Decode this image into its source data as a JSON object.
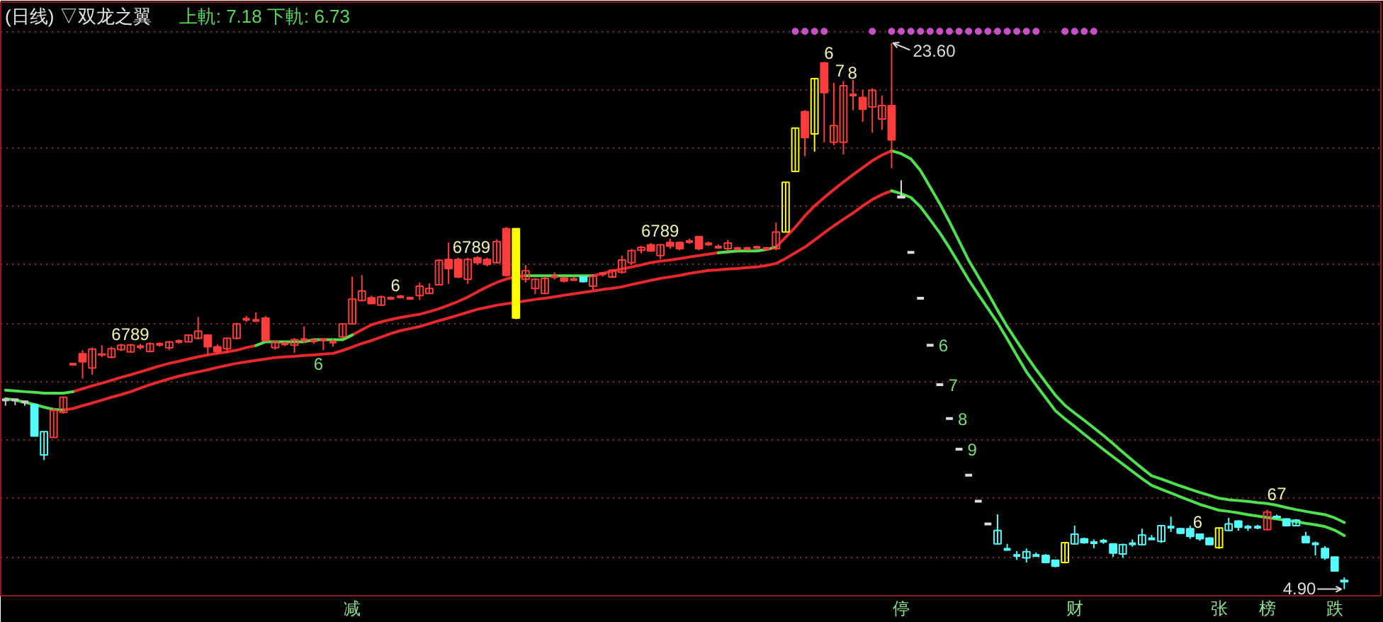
{
  "chart_data": {
    "type": "candlestick",
    "title": "(日线) ▽双龙之翼",
    "subtitle": "上軌: 7.18 下軌: 6.73",
    "categories": [
      null,
      null,
      null,
      null,
      null,
      null,
      null,
      null,
      null,
      null,
      null,
      null,
      null,
      null,
      null,
      null,
      null,
      null,
      null,
      null,
      null,
      null,
      null,
      null,
      null,
      null,
      null,
      null,
      null,
      null,
      null,
      null,
      null,
      null,
      null,
      null,
      "减",
      null,
      null,
      null,
      null,
      null,
      null,
      null,
      null,
      null,
      null,
      null,
      null,
      null,
      null,
      null,
      null,
      null,
      null,
      null,
      null,
      null,
      null,
      null,
      null,
      null,
      null,
      null,
      null,
      null,
      null,
      null,
      null,
      null,
      null,
      null,
      null,
      null,
      null,
      null,
      null,
      null,
      null,
      null,
      null,
      null,
      null,
      null,
      null,
      null,
      null,
      null,
      null,
      null,
      null,
      null,
      null,
      "停",
      null,
      null,
      null,
      null,
      null,
      null,
      null,
      null,
      null,
      null,
      null,
      null,
      null,
      null,
      null,
      null,
      null,
      "财",
      null,
      null,
      null,
      null,
      null,
      null,
      null,
      null,
      null,
      null,
      null,
      null,
      null,
      null,
      "张",
      null,
      null,
      null,
      null,
      "榜",
      null,
      null,
      null,
      null,
      null,
      null,
      "跌",
      null
    ],
    "ohlc": [
      [
        11.38,
        11.42,
        11.18,
        11.38
      ],
      [
        11.38,
        11.42,
        11.2,
        11.38
      ],
      [
        11.31,
        11.35,
        11.18,
        11.31
      ],
      [
        11.22,
        11.22,
        10.14,
        10.14
      ],
      [
        9.49,
        10.29,
        9.32,
        10.29
      ],
      [
        10.09,
        11.11,
        10.09,
        11.02
      ],
      [
        10.95,
        11.5,
        10.9,
        11.47
      ],
      [
        12.6,
        12.65,
        12.55,
        12.6
      ],
      [
        12.96,
        13.08,
        12.11,
        12.68
      ],
      [
        12.47,
        13.17,
        12.24,
        13.12
      ],
      [
        12.95,
        13.25,
        12.84,
        12.92
      ],
      [
        12.84,
        13.2,
        12.8,
        13.13
      ],
      [
        13.1,
        13.3,
        13.05,
        13.25
      ],
      [
        13.02,
        13.3,
        13.0,
        13.26
      ],
      [
        13.2,
        13.3,
        13.1,
        13.2
      ],
      [
        13.04,
        13.35,
        13.0,
        13.3
      ],
      [
        13.28,
        13.35,
        13.2,
        13.28
      ],
      [
        13.16,
        13.4,
        13.08,
        13.36
      ],
      [
        13.38,
        13.45,
        13.3,
        13.38
      ],
      [
        13.37,
        13.62,
        13.35,
        13.6
      ],
      [
        13.49,
        14.22,
        13.45,
        13.73
      ],
      [
        13.6,
        13.62,
        12.92,
        13.2
      ],
      [
        13.2,
        13.28,
        12.95,
        13.03
      ],
      [
        13.13,
        13.52,
        12.99,
        13.49
      ],
      [
        13.49,
        14.02,
        13.45,
        13.98
      ],
      [
        14.14,
        14.25,
        14.05,
        14.14
      ],
      [
        14.1,
        14.38,
        14.05,
        14.1
      ],
      [
        14.18,
        14.25,
        13.41,
        13.41
      ],
      [
        13.17,
        13.4,
        13.1,
        13.37
      ],
      [
        13.3,
        13.38,
        13.22,
        13.3
      ],
      [
        13.25,
        13.5,
        12.99,
        13.44
      ],
      [
        13.44,
        13.89,
        13.33,
        13.44
      ],
      [
        13.4,
        13.48,
        13.3,
        13.4
      ],
      [
        13.44,
        13.47,
        13.08,
        13.44
      ],
      [
        13.36,
        13.45,
        13.2,
        13.36
      ],
      [
        13.54,
        14.0,
        13.5,
        13.98
      ],
      [
        13.98,
        15.6,
        13.98,
        14.83
      ],
      [
        14.78,
        15.65,
        14.75,
        15.11
      ],
      [
        14.88,
        14.95,
        14.65,
        14.68
      ],
      [
        14.62,
        14.95,
        14.6,
        14.9
      ],
      [
        14.86,
        14.92,
        14.8,
        14.86
      ],
      [
        14.91,
        14.97,
        14.85,
        14.91
      ],
      [
        14.86,
        14.92,
        14.8,
        14.86
      ],
      [
        14.95,
        15.4,
        14.8,
        15.27
      ],
      [
        15.02,
        15.37,
        15.0,
        15.19
      ],
      [
        15.32,
        16.2,
        15.3,
        16.16
      ],
      [
        16.19,
        16.77,
        15.35,
        15.87
      ],
      [
        16.19,
        16.25,
        15.55,
        15.59
      ],
      [
        15.51,
        16.25,
        15.35,
        16.19
      ],
      [
        16.24,
        16.3,
        16.0,
        16.08
      ],
      [
        16.19,
        16.25,
        15.95,
        16.02
      ],
      [
        16.08,
        16.88,
        16.05,
        16.8
      ],
      [
        17.24,
        17.3,
        15.6,
        15.64
      ],
      [
        17.24,
        17.24,
        14.14,
        14.18
      ],
      [
        15.51,
        16.0,
        15.4,
        15.8
      ],
      [
        15.19,
        15.55,
        15.0,
        15.51
      ],
      [
        15.02,
        15.6,
        15.0,
        15.54
      ],
      [
        15.6,
        15.75,
        15.5,
        15.6
      ],
      [
        15.55,
        15.6,
        15.4,
        15.45
      ],
      [
        15.5,
        15.6,
        15.45,
        15.5
      ],
      [
        15.59,
        15.6,
        15.4,
        15.43
      ],
      [
        15.27,
        15.65,
        15.15,
        15.62
      ],
      [
        15.7,
        15.75,
        15.6,
        15.7
      ],
      [
        15.59,
        15.85,
        15.55,
        15.82
      ],
      [
        15.75,
        16.32,
        15.7,
        16.17
      ],
      [
        16.08,
        16.55,
        16.0,
        16.49
      ],
      [
        16.5,
        16.65,
        16.4,
        16.6
      ],
      [
        16.69,
        16.75,
        16.45,
        16.48
      ],
      [
        16.32,
        16.72,
        16.2,
        16.69
      ],
      [
        16.77,
        16.9,
        16.55,
        16.64
      ],
      [
        16.77,
        16.8,
        16.5,
        16.56
      ],
      [
        16.8,
        16.9,
        16.72,
        16.8
      ],
      [
        16.97,
        17.0,
        16.5,
        16.56
      ],
      [
        16.72,
        16.8,
        16.65,
        16.72
      ],
      [
        16.61,
        16.7,
        16.55,
        16.61
      ],
      [
        16.56,
        16.85,
        16.5,
        16.75
      ],
      [
        16.56,
        16.62,
        16.5,
        16.56
      ],
      [
        16.56,
        16.62,
        16.5,
        16.56
      ],
      [
        16.6,
        16.66,
        16.54,
        16.6
      ],
      [
        16.56,
        16.62,
        16.5,
        16.56
      ],
      [
        16.56,
        17.45,
        16.5,
        17.13
      ],
      [
        17.13,
        18.83,
        17.13,
        18.83
      ],
      [
        19.2,
        20.69,
        19.2,
        20.69
      ],
      [
        21.25,
        21.3,
        19.72,
        20.36
      ],
      [
        20.49,
        22.4,
        19.88,
        22.38
      ],
      [
        22.92,
        22.95,
        20.2,
        21.9
      ],
      [
        20.2,
        22.24,
        20.1,
        20.77
      ],
      [
        20.2,
        22.3,
        19.78,
        22.14
      ],
      [
        21.82,
        22.33,
        21.3,
        21.82
      ],
      [
        21.74,
        21.99,
        20.9,
        21.33
      ],
      [
        21.41,
        22.05,
        20.53,
        21.98
      ],
      [
        21.0,
        21.8,
        20.63,
        21.46
      ],
      [
        21.46,
        23.6,
        19.31,
        20.28
      ],
      [
        18.35,
        18.9,
        18.3,
        18.3
      ],
      [
        16.43,
        16.43,
        16.43,
        16.43
      ],
      [
        14.86,
        14.86,
        14.86,
        14.86
      ],
      [
        13.25,
        13.25,
        13.25,
        13.25
      ],
      [
        11.9,
        11.9,
        11.9,
        11.9
      ],
      [
        10.74,
        10.74,
        10.74,
        10.74
      ],
      [
        9.69,
        9.69,
        9.69,
        9.69
      ],
      [
        8.8,
        8.8,
        8.8,
        8.8
      ],
      [
        7.91,
        7.91,
        7.91,
        7.91
      ],
      [
        7.13,
        7.13,
        7.13,
        7.13
      ],
      [
        6.45,
        7.46,
        6.45,
        6.91
      ],
      [
        6.26,
        6.45,
        6.22,
        6.26
      ],
      [
        6.05,
        6.2,
        5.9,
        6.05
      ],
      [
        5.97,
        6.29,
        5.81,
        6.18
      ],
      [
        6.05,
        6.15,
        6.0,
        6.05
      ],
      [
        6.05,
        6.1,
        5.78,
        5.81
      ],
      [
        5.89,
        5.9,
        5.65,
        5.68
      ],
      [
        5.81,
        6.5,
        5.78,
        6.49
      ],
      [
        6.45,
        7.07,
        6.42,
        6.78
      ],
      [
        6.62,
        6.66,
        6.45,
        6.49
      ],
      [
        6.49,
        6.6,
        6.3,
        6.49
      ],
      [
        6.54,
        6.62,
        6.45,
        6.54
      ],
      [
        6.45,
        6.47,
        6.0,
        6.13
      ],
      [
        6.1,
        6.45,
        5.97,
        6.42
      ],
      [
        6.45,
        6.6,
        6.35,
        6.45
      ],
      [
        6.42,
        6.97,
        6.4,
        6.75
      ],
      [
        6.62,
        6.75,
        6.6,
        6.62
      ],
      [
        6.53,
        7.1,
        6.48,
        7.07
      ],
      [
        7.02,
        7.38,
        6.86,
        7.02
      ],
      [
        6.97,
        7.0,
        6.78,
        6.81
      ],
      [
        6.97,
        7.07,
        6.62,
        6.7
      ],
      [
        6.78,
        6.8,
        6.55,
        6.62
      ],
      [
        6.65,
        6.68,
        6.4,
        6.42
      ],
      [
        6.32,
        7.0,
        6.28,
        6.99
      ],
      [
        6.91,
        7.34,
        6.88,
        7.13
      ],
      [
        7.23,
        7.26,
        6.9,
        7.02
      ],
      [
        7.02,
        7.1,
        6.9,
        7.02
      ],
      [
        7.02,
        7.1,
        6.95,
        7.02
      ],
      [
        6.94,
        7.62,
        6.9,
        7.54
      ],
      [
        7.39,
        7.45,
        7.3,
        7.35
      ],
      [
        7.3,
        7.32,
        7.05,
        7.07
      ],
      [
        7.07,
        7.3,
        7.05,
        7.26
      ],
      [
        6.7,
        6.86,
        6.47,
        6.49
      ],
      [
        6.45,
        6.53,
        6.05,
        6.45
      ],
      [
        6.29,
        6.37,
        5.9,
        5.97
      ],
      [
        6.0,
        6.0,
        5.5,
        5.52
      ],
      [
        5.2,
        5.3,
        4.9,
        5.15
      ]
    ],
    "colors": [
      "#c8c8c8",
      "#c8c8c8",
      "#c8c8c8",
      "#54fcfc",
      "#54fcfc",
      "#ff3c3c",
      "#ff3c3c",
      "#ff3c3c",
      "#ff3c3c",
      "#ff3c3c",
      "#ff3c3c",
      "#ff3c3c",
      "#ff3c3c",
      "#ff3c3c",
      "#ff3c3c",
      "#ff3c3c",
      "#ff3c3c",
      "#ff3c3c",
      "#ff3c3c",
      "#ff3c3c",
      "#ff3c3c",
      "#ff3c3c",
      "#ff3c3c",
      "#ff3c3c",
      "#ff3c3c",
      "#ff3c3c",
      "#ff3c3c",
      "#ff3c3c",
      "#ff3c3c",
      "#ff3c3c",
      "#ff3c3c",
      "#ff3c3c",
      "#ff3c3c",
      "#ff3c3c",
      "#ff3c3c",
      "#ff3c3c",
      "#ff3c3c",
      "#ff3c3c",
      "#ff3c3c",
      "#ff3c3c",
      "#ff3c3c",
      "#ff3c3c",
      "#ff3c3c",
      "#ff3c3c",
      "#ff3c3c",
      "#ff3c3c",
      "#ff3c3c",
      "#ff3c3c",
      "#ff3c3c",
      "#ff3c3c",
      "#ff3c3c",
      "#ff3c3c",
      "#ff3c3c",
      "#ffff00",
      "#ff3c3c",
      "#ff3c3c",
      "#ff3c3c",
      "#ff3c3c",
      "#ff3c3c",
      "#ff3c3c",
      "#54fcfc",
      "#ff3c3c",
      "#ff3c3c",
      "#ff3c3c",
      "#ff3c3c",
      "#ff3c3c",
      "#ff3c3c",
      "#ff3c3c",
      "#ff3c3c",
      "#ff3c3c",
      "#ff3c3c",
      "#ff3c3c",
      "#ff3c3c",
      "#ff3c3c",
      "#ff3c3c",
      "#ff3c3c",
      "#ff3c3c",
      "#ff3c3c",
      "#ff3c3c",
      "#ff3c3c",
      "#ff3c3c",
      "#ffff00",
      "#ffff00",
      "#ff3c3c",
      "#ffff00",
      "#ff3c3c",
      "#ff3c3c",
      "#ff3c3c",
      "#ff3c3c",
      "#ff3c3c",
      "#ff3c3c",
      "#ff3c3c",
      "#ff3c3c",
      "#dcdcdc",
      "#dcdcdc",
      "#dcdcdc",
      "#dcdcdc",
      "#dcdcdc",
      "#dcdcdc",
      "#dcdcdc",
      "#dcdcdc",
      "#dcdcdc",
      "#dcdcdc",
      "#54fcfc",
      "#54fcfc",
      "#54fcfc",
      "#54fcfc",
      "#54fcfc",
      "#54fcfc",
      "#54fcfc",
      "#ffff00",
      "#54fcfc",
      "#54fcfc",
      "#54fcfc",
      "#54fcfc",
      "#54fcfc",
      "#54fcfc",
      "#54fcfc",
      "#54fcfc",
      "#54fcfc",
      "#54fcfc",
      "#54fcfc",
      "#54fcfc",
      "#54fcfc",
      "#54fcfc",
      "#54fcfc",
      "#ffff00",
      "#54fcfc",
      "#54fcfc",
      "#54fcfc",
      "#54fcfc",
      "#ff3c3c",
      "#54fcfc",
      "#54fcfc",
      "#54fcfc",
      "#54fcfc",
      "#54fcfc",
      "#54fcfc",
      "#54fcfc",
      "#54fcfc"
    ],
    "series": [
      {
        "type": "line",
        "color": "#e8282d",
        "values": [
          null,
          null,
          null,
          null,
          null,
          null,
          null,
          11.66,
          11.76,
          11.86,
          11.95,
          12.05,
          12.15,
          12.24,
          12.34,
          12.44,
          12.54,
          12.63,
          12.7,
          12.78,
          12.85,
          12.92,
          12.97,
          13.02,
          13.08,
          13.17,
          13.24,
          13.37,
          null,
          null,
          null,
          null,
          null,
          null,
          null,
          13.44,
          13.6,
          13.78,
          13.95,
          14.05,
          14.13,
          14.2,
          14.26,
          14.31,
          14.4,
          14.5,
          14.62,
          14.75,
          14.9,
          15.08,
          15.25,
          15.4,
          15.52,
          15.6,
          15.63,
          null,
          null,
          null,
          null,
          null,
          null,
          15.63,
          15.71,
          15.79,
          15.86,
          15.93,
          16.0,
          16.08,
          16.13,
          16.17,
          16.22,
          16.27,
          16.32,
          16.37,
          16.42,
          16.45,
          16.48,
          null,
          16.48,
          16.53,
          16.61,
          16.95,
          17.29,
          17.68,
          18.02,
          18.31,
          18.58,
          18.84,
          19.09,
          19.33,
          19.57,
          19.76,
          19.91,
          null,
          null,
          null,
          null,
          null,
          null,
          null,
          null,
          null,
          null,
          null,
          null,
          null,
          null,
          null,
          null,
          null,
          null,
          null,
          null,
          null,
          null,
          null,
          null,
          null,
          null,
          null,
          null,
          null,
          null,
          null,
          null,
          null,
          null,
          null,
          null,
          null,
          null,
          null,
          null,
          null,
          null,
          null,
          null,
          null,
          null,
          null
        ]
      },
      {
        "type": "line",
        "color": "#4fe04f",
        "values": [
          11.71,
          11.69,
          11.66,
          11.64,
          11.61,
          11.61,
          11.61,
          11.66,
          null,
          null,
          null,
          null,
          null,
          null,
          null,
          null,
          null,
          null,
          null,
          null,
          null,
          null,
          null,
          null,
          null,
          null,
          13.24,
          13.37,
          13.37,
          13.37,
          13.37,
          13.37,
          13.44,
          13.44,
          13.44,
          13.44,
          13.6,
          null,
          null,
          null,
          null,
          null,
          null,
          null,
          null,
          null,
          null,
          null,
          null,
          null,
          null,
          null,
          null,
          null,
          15.63,
          15.63,
          15.63,
          15.63,
          15.63,
          15.63,
          15.63,
          15.63,
          null,
          null,
          null,
          null,
          null,
          null,
          null,
          null,
          null,
          null,
          null,
          null,
          16.42,
          16.45,
          16.48,
          16.48,
          16.48,
          16.53,
          16.61,
          null,
          null,
          null,
          null,
          null,
          null,
          null,
          null,
          null,
          null,
          null,
          19.91,
          19.81,
          19.63,
          19.23,
          18.67,
          18.1,
          17.48,
          16.82,
          16.16,
          15.6,
          15.04,
          14.45,
          13.89,
          13.39,
          12.89,
          12.42,
          11.98,
          11.54,
          11.19,
          10.93,
          10.68,
          10.42,
          10.16,
          9.88,
          9.59,
          9.31,
          9.04,
          8.78,
          8.67,
          8.55,
          8.43,
          8.32,
          8.21,
          8.11,
          8.01,
          7.96,
          7.93,
          7.9,
          7.86,
          7.83,
          7.77,
          7.69,
          7.62,
          7.56,
          7.5,
          7.45,
          7.34,
          7.18
        ]
      },
      {
        "type": "line",
        "color": "#e8282d",
        "values": [
          null,
          null,
          null,
          null,
          null,
          null,
          11.03,
          11.08,
          11.18,
          11.27,
          11.37,
          11.47,
          11.56,
          11.66,
          11.78,
          11.9,
          12.0,
          12.1,
          12.19,
          12.27,
          12.34,
          12.41,
          12.49,
          12.56,
          12.63,
          12.68,
          12.73,
          12.78,
          12.83,
          12.85,
          12.87,
          12.9,
          12.92,
          12.95,
          12.97,
          13.07,
          13.19,
          13.31,
          13.41,
          13.53,
          13.65,
          13.75,
          13.82,
          13.89,
          13.99,
          14.09,
          14.18,
          14.28,
          14.38,
          14.48,
          14.55,
          14.62,
          14.67,
          14.72,
          14.77,
          14.82,
          14.86,
          14.91,
          14.96,
          15.01,
          15.06,
          15.11,
          15.16,
          15.2,
          15.25,
          15.33,
          15.4,
          15.47,
          15.54,
          15.59,
          15.64,
          15.71,
          15.76,
          15.81,
          15.83,
          15.86,
          15.88,
          15.91,
          15.93,
          15.98,
          16.05,
          16.22,
          16.42,
          16.61,
          16.85,
          17.1,
          17.34,
          17.56,
          17.78,
          18.02,
          18.24,
          18.41,
          18.54,
          null,
          null,
          null,
          null,
          null,
          null,
          null,
          null,
          null,
          null,
          null,
          null,
          null,
          null,
          null,
          null,
          null,
          null,
          null,
          null,
          null,
          null,
          null,
          null,
          null,
          null,
          null,
          null,
          null,
          null,
          null,
          null,
          null,
          null,
          null,
          null,
          null,
          null,
          null,
          null,
          null,
          null,
          null,
          null,
          null,
          null,
          null
        ]
      },
      {
        "type": "line",
        "color": "#4fe04f",
        "values": [
          11.42,
          11.37,
          11.3,
          11.22,
          11.13,
          11.05,
          11.03,
          null,
          null,
          null,
          null,
          null,
          null,
          null,
          null,
          null,
          null,
          null,
          null,
          null,
          null,
          null,
          null,
          null,
          null,
          null,
          null,
          null,
          null,
          null,
          null,
          null,
          null,
          null,
          null,
          null,
          null,
          null,
          null,
          null,
          null,
          null,
          null,
          null,
          null,
          null,
          null,
          null,
          null,
          null,
          null,
          null,
          null,
          null,
          null,
          null,
          null,
          null,
          null,
          null,
          null,
          null,
          null,
          null,
          null,
          null,
          null,
          null,
          null,
          null,
          null,
          null,
          null,
          null,
          null,
          null,
          null,
          null,
          null,
          null,
          null,
          null,
          null,
          null,
          null,
          null,
          null,
          null,
          null,
          null,
          null,
          null,
          18.54,
          18.44,
          18.31,
          17.99,
          17.55,
          17.1,
          16.59,
          16.04,
          15.49,
          14.99,
          14.51,
          14.02,
          13.47,
          12.9,
          12.34,
          11.89,
          11.45,
          11.01,
          10.73,
          10.47,
          10.2,
          9.94,
          9.68,
          9.43,
          9.18,
          8.93,
          8.68,
          8.45,
          8.32,
          8.19,
          8.06,
          7.93,
          7.8,
          7.7,
          7.6,
          7.56,
          7.51,
          7.45,
          7.4,
          7.35,
          7.3,
          7.25,
          7.21,
          7.15,
          7.1,
          7.04,
          6.92,
          6.73
        ]
      },
      {
        "type": "scatter",
        "marker": "circle",
        "color": "#c850c8",
        "values": [
          null,
          null,
          null,
          null,
          null,
          null,
          null,
          null,
          null,
          null,
          null,
          null,
          null,
          null,
          null,
          null,
          null,
          null,
          null,
          null,
          null,
          null,
          null,
          null,
          null,
          null,
          null,
          null,
          null,
          null,
          null,
          null,
          null,
          null,
          null,
          null,
          null,
          null,
          null,
          null,
          null,
          null,
          null,
          null,
          null,
          null,
          null,
          null,
          null,
          null,
          null,
          null,
          null,
          null,
          null,
          null,
          null,
          null,
          null,
          null,
          null,
          null,
          null,
          null,
          null,
          null,
          null,
          null,
          null,
          null,
          null,
          null,
          null,
          null,
          null,
          null,
          null,
          null,
          null,
          null,
          null,
          null,
          24,
          24,
          24,
          24,
          null,
          null,
          null,
          null,
          24,
          null,
          24,
          24,
          24,
          24,
          24,
          24,
          24,
          24,
          24,
          24,
          24,
          24,
          24,
          24,
          24,
          24,
          null,
          null,
          24,
          24,
          24,
          24,
          null,
          null,
          null,
          null,
          null,
          null,
          null,
          null,
          null,
          null,
          null,
          null,
          null,
          null,
          null,
          null,
          null,
          null,
          null,
          null,
          null,
          null,
          null,
          null,
          null,
          null
        ]
      }
    ],
    "ylim": [
      4.67,
      25.0
    ],
    "yticks": [
      {
        "value": 6,
        "label": null
      },
      {
        "value": 8,
        "label": null
      },
      {
        "value": 10,
        "label": null
      },
      {
        "value": 12,
        "label": null
      },
      {
        "value": 14,
        "label": null
      },
      {
        "value": 16,
        "label": null
      },
      {
        "value": 18,
        "label": null
      },
      {
        "value": 20,
        "label": null
      },
      {
        "value": 22,
        "label": null
      },
      {
        "value": 24,
        "label": null
      }
    ],
    "grid": "y",
    "tick_labels": "x",
    "annotations": [
      "6789",
      "6",
      "6",
      "6789",
      "6789",
      "6",
      "7",
      "8",
      "23.60",
      "6",
      "7",
      "8",
      "9",
      "6",
      "6",
      "7",
      "4.90"
    ]
  }
}
